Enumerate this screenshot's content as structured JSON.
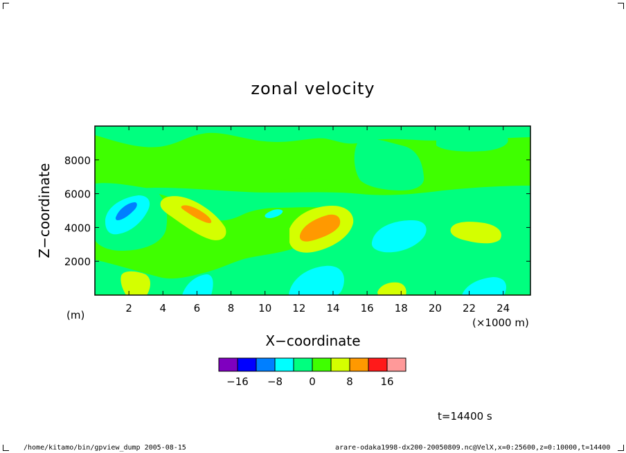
{
  "chart_data": {
    "type": "heatmap",
    "title": "zonal velocity",
    "xlabel": "X−coordinate",
    "ylabel": "Z−coordinate",
    "x_unit": "(×1000 m)",
    "y_unit": "(m)",
    "xlim": [
      0,
      25.6
    ],
    "ylim": [
      0,
      10000
    ],
    "x_ticks": [
      2,
      4,
      6,
      8,
      10,
      12,
      14,
      16,
      18,
      20,
      22,
      24
    ],
    "y_ticks": [
      2000,
      4000,
      6000,
      8000
    ],
    "colorbar": {
      "levels": [
        -20,
        -16,
        -12,
        -8,
        -4,
        0,
        4,
        8,
        12,
        16,
        20
      ],
      "tick_labels": [
        "−16",
        "−8",
        "0",
        "8",
        "16"
      ],
      "tick_values": [
        -16,
        -8,
        0,
        8,
        16
      ],
      "colors": [
        "#7f00bf",
        "#0000ff",
        "#007fff",
        "#00ffff",
        "#00ff7f",
        "#3fff00",
        "#d4ff00",
        "#ff9900",
        "#ff1a1a",
        "#ff9999"
      ]
    },
    "time_label": "t=14400 s"
  },
  "footer": {
    "left": "/home/kitamo/bin/gpview_dump  2005-08-15",
    "right": "arare-odaka1998-dx200-20050809.nc@VelX,x=0:25600,z=0:10000,t=14400"
  }
}
